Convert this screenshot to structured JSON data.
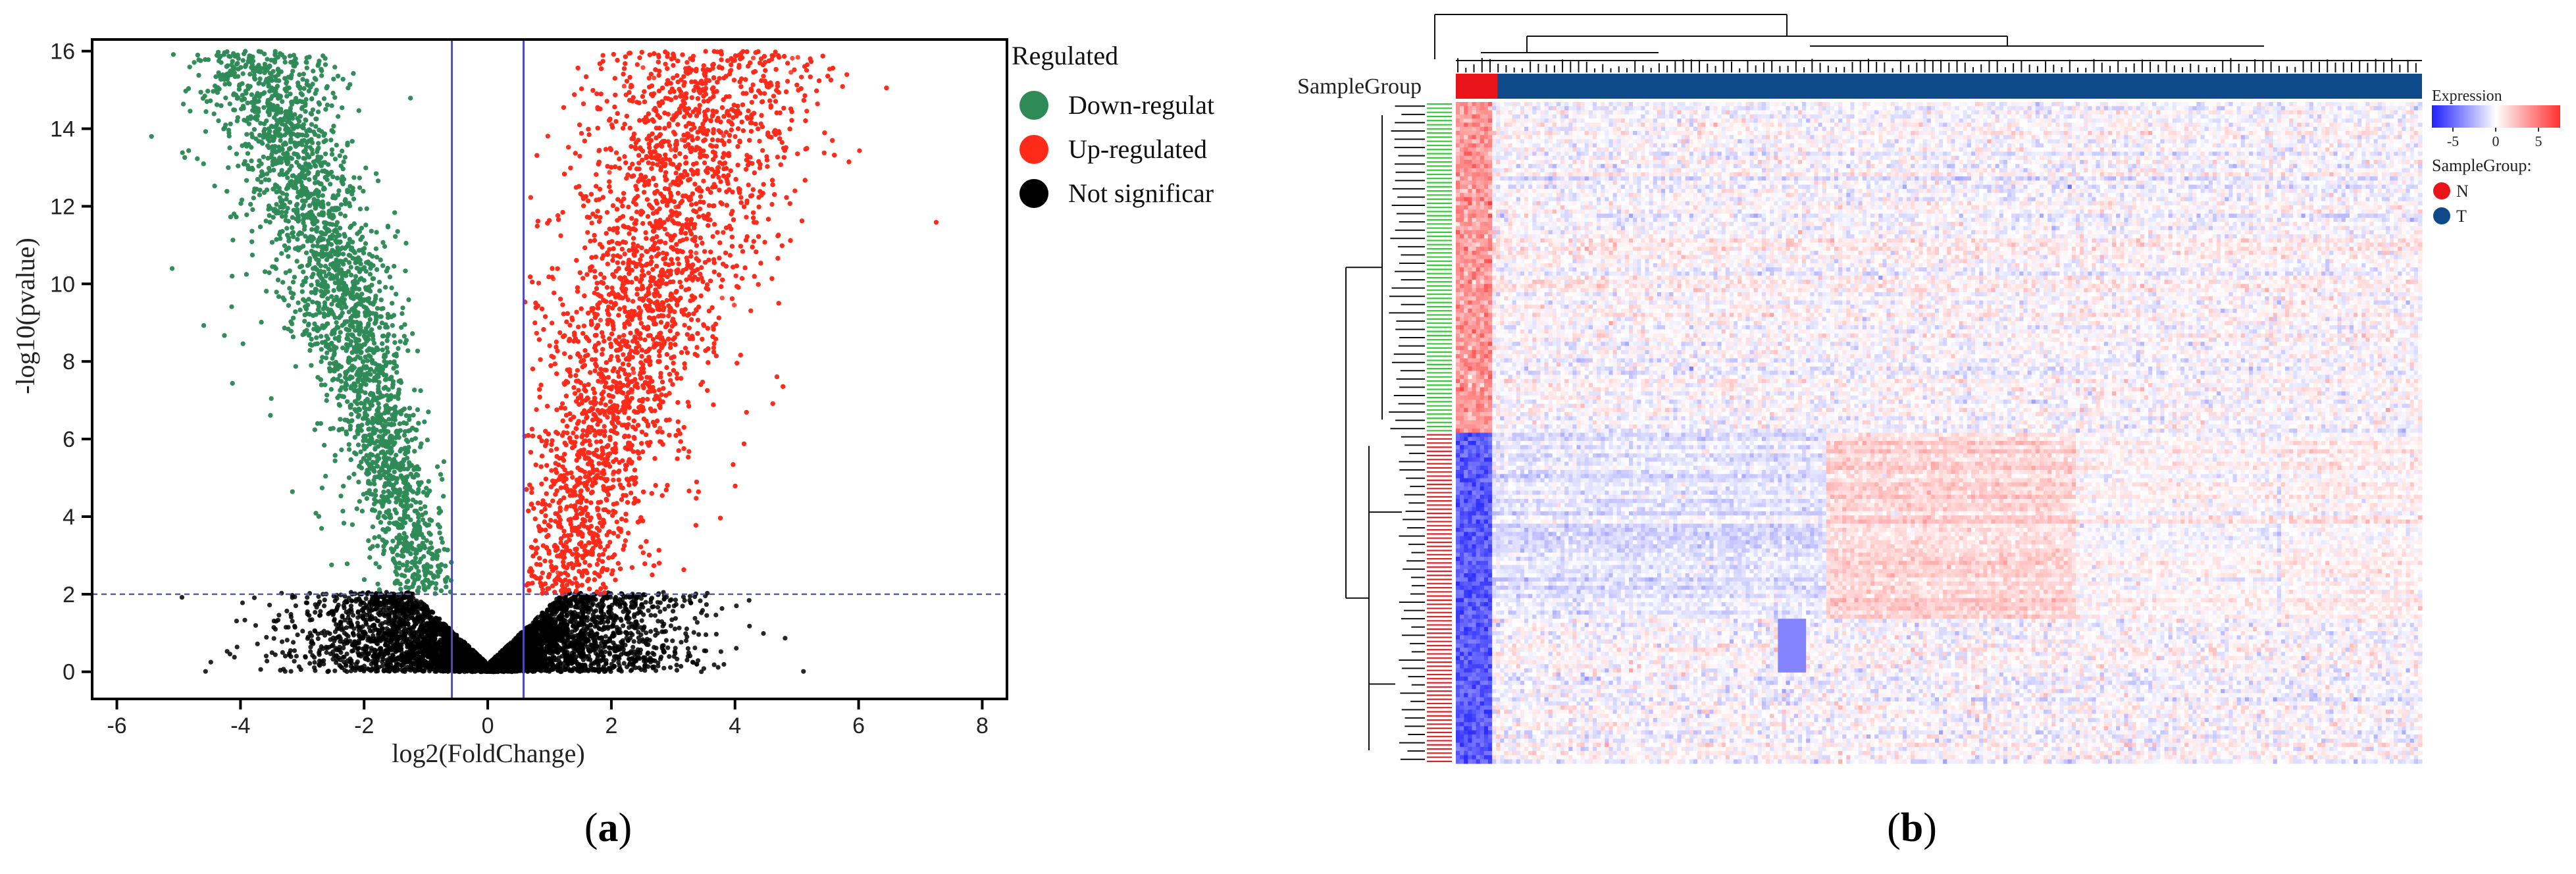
{
  "chart_data": [
    {
      "type": "scatter",
      "panel_label_prefix": "(",
      "panel_label_letter": "a",
      "panel_label_suffix": ")",
      "xlabel": "log2(FoldChange)",
      "ylabel": "-log10(pvalue)",
      "xlim": [
        -6.4,
        8.4
      ],
      "ylim": [
        -0.7,
        16.3
      ],
      "x_ticks": [
        -6,
        -4,
        -2,
        0,
        2,
        4,
        6,
        8
      ],
      "y_ticks": [
        0,
        2,
        4,
        6,
        8,
        10,
        12,
        14,
        16
      ],
      "threshold_lines": {
        "x": [
          -0.58,
          0.58
        ],
        "y": 2
      },
      "legend_title": "Regulated",
      "series": [
        {
          "name": "Down-regulat",
          "color": "#2e8b57",
          "approx_points": 5200
        },
        {
          "name": "Up-regulated",
          "color": "#ff2a1a",
          "approx_points": 7200
        },
        {
          "name": "Not significar",
          "color": "#000000",
          "approx_points": 4800
        }
      ]
    },
    {
      "type": "heatmap",
      "panel_label_prefix": "(",
      "panel_label_letter": "b",
      "panel_label_suffix": ")",
      "annotation_label": "SampleGroup",
      "groups": [
        {
          "name": "N",
          "color": "#e8141a"
        },
        {
          "name": "T",
          "color": "#0e4a8a"
        }
      ],
      "legend_expression_title": "Expression",
      "legend_expression_ticks": [
        "-5",
        "0",
        "5"
      ],
      "color_scale": {
        "low": "#2020ff",
        "mid": "#ffffff",
        "high": "#ff3030"
      },
      "legend_group_title": "SampleGroup:",
      "rows": 160,
      "cols": 240,
      "gene_clusters": [
        {
          "rows": 80,
          "pattern": "higher in N"
        },
        {
          "rows": 80,
          "pattern": "mixed blocks"
        }
      ]
    }
  ]
}
